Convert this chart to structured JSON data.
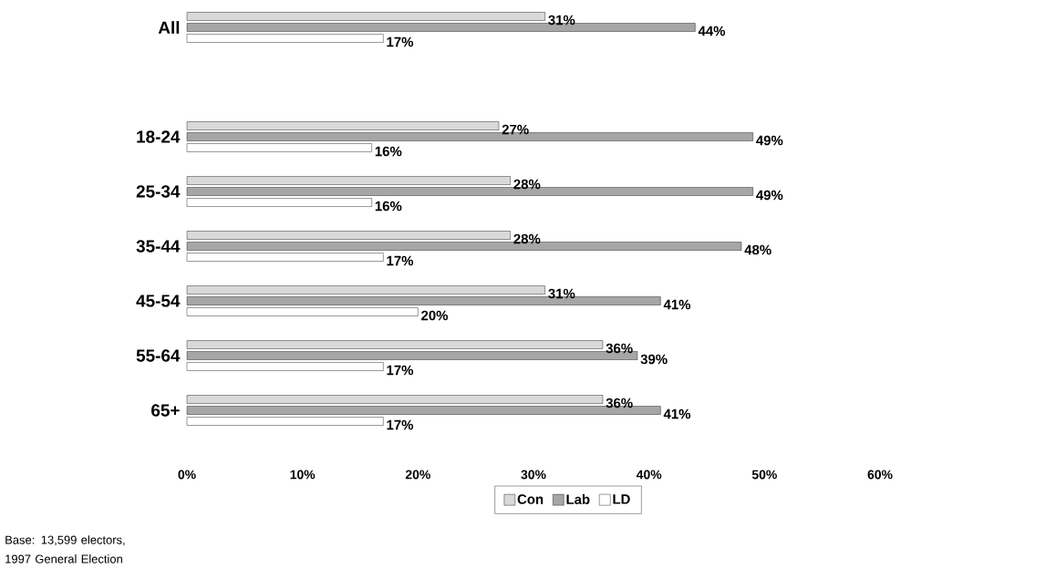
{
  "chart_data": {
    "type": "bar",
    "orientation": "horizontal",
    "categories": [
      "All",
      null,
      "18-24",
      "25-34",
      "35-44",
      "45-54",
      "55-64",
      "65+"
    ],
    "series": [
      {
        "name": "Con",
        "color": "#d9d9d9",
        "values": [
          31,
          null,
          27,
          28,
          28,
          31,
          36,
          36
        ],
        "value_labels": [
          "31%",
          null,
          "27%",
          "28%",
          "28%",
          "31%",
          "36%",
          "36%"
        ]
      },
      {
        "name": "Lab",
        "color": "#a6a6a6",
        "values": [
          44,
          null,
          49,
          49,
          48,
          41,
          39,
          41
        ],
        "value_labels": [
          "44%",
          null,
          "49%",
          "49%",
          "48%",
          "41%",
          "39%",
          "41%"
        ]
      },
      {
        "name": "LD",
        "color": "#ffffff",
        "values": [
          17,
          null,
          16,
          16,
          17,
          20,
          17,
          17
        ],
        "value_labels": [
          "17%",
          null,
          "16%",
          "16%",
          "17%",
          "20%",
          "17%",
          "17%"
        ]
      }
    ],
    "xlim": [
      0,
      60
    ],
    "xticks": [
      {
        "value": 0,
        "label": "0%"
      },
      {
        "value": 10,
        "label": "10%"
      },
      {
        "value": 20,
        "label": "20%"
      },
      {
        "value": 30,
        "label": "30%"
      },
      {
        "value": 40,
        "label": "40%"
      },
      {
        "value": 50,
        "label": "50%"
      },
      {
        "value": 60,
        "label": "60%"
      }
    ],
    "legend": "bottom",
    "annotations": [
      "Base: 13,599 electors, 1997 General Election"
    ]
  }
}
